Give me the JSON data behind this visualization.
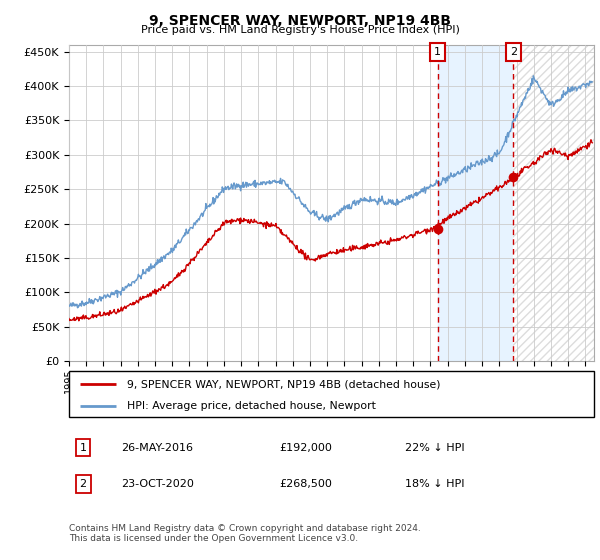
{
  "title": "9, SPENCER WAY, NEWPORT, NP19 4BB",
  "subtitle": "Price paid vs. HM Land Registry's House Price Index (HPI)",
  "ylabel_ticks": [
    "£0",
    "£50K",
    "£100K",
    "£150K",
    "£200K",
    "£250K",
    "£300K",
    "£350K",
    "£400K",
    "£450K"
  ],
  "ytick_values": [
    0,
    50000,
    100000,
    150000,
    200000,
    250000,
    300000,
    350000,
    400000,
    450000
  ],
  "ylim": [
    0,
    460000
  ],
  "xlim_start": 1995.0,
  "xlim_end": 2025.5,
  "transaction1": {
    "date": "26-MAY-2016",
    "year": 2016.42,
    "price": 192000,
    "label": "1",
    "note": "22% ↓ HPI"
  },
  "transaction2": {
    "date": "23-OCT-2020",
    "year": 2020.81,
    "price": 268500,
    "label": "2",
    "note": "18% ↓ HPI"
  },
  "legend_line1": "9, SPENCER WAY, NEWPORT, NP19 4BB (detached house)",
  "legend_line2": "HPI: Average price, detached house, Newport",
  "footer": "Contains HM Land Registry data © Crown copyright and database right 2024.\nThis data is licensed under the Open Government Licence v3.0.",
  "line_red_color": "#cc0000",
  "line_blue_color": "#6699cc",
  "grid_color": "#cccccc",
  "bg_color": "#ffffff",
  "plot_bg": "#ffffff",
  "shade_color": "#ddeeff",
  "hatch_color": "#dddddd"
}
